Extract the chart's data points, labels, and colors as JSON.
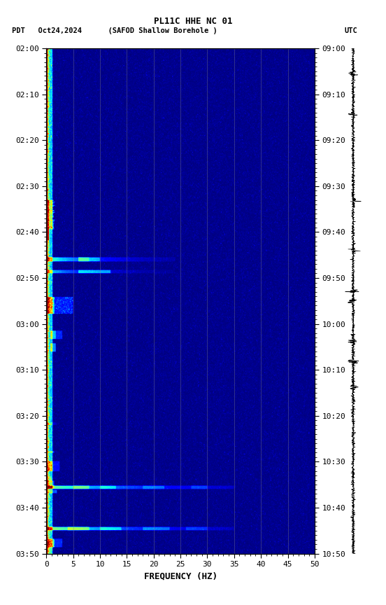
{
  "title_line1": "PL11C HHE NC 01",
  "title_line2_left": "PDT   Oct24,2024      (SAFOD Shallow Borehole )",
  "title_line2_right": "UTC",
  "xlabel": "FREQUENCY (HZ)",
  "freq_min": 0,
  "freq_max": 50,
  "time_labels_left": [
    "02:00",
    "02:10",
    "02:20",
    "02:30",
    "02:40",
    "02:50",
    "03:00",
    "03:10",
    "03:20",
    "03:30",
    "03:40",
    "03:50"
  ],
  "time_labels_right": [
    "09:00",
    "09:10",
    "09:20",
    "09:30",
    "09:40",
    "09:50",
    "10:00",
    "10:10",
    "10:20",
    "10:30",
    "10:40",
    "10:50"
  ],
  "n_time": 600,
  "n_freq": 500,
  "colormap": "jet",
  "vmin": 0.0,
  "vmax": 1.0,
  "grid_color": "#888888",
  "grid_alpha": 0.5,
  "grid_lw": 0.5,
  "tick_color": "black",
  "bg_color": "white",
  "spec_bg": "#000080",
  "waveform_lw": 0.4
}
